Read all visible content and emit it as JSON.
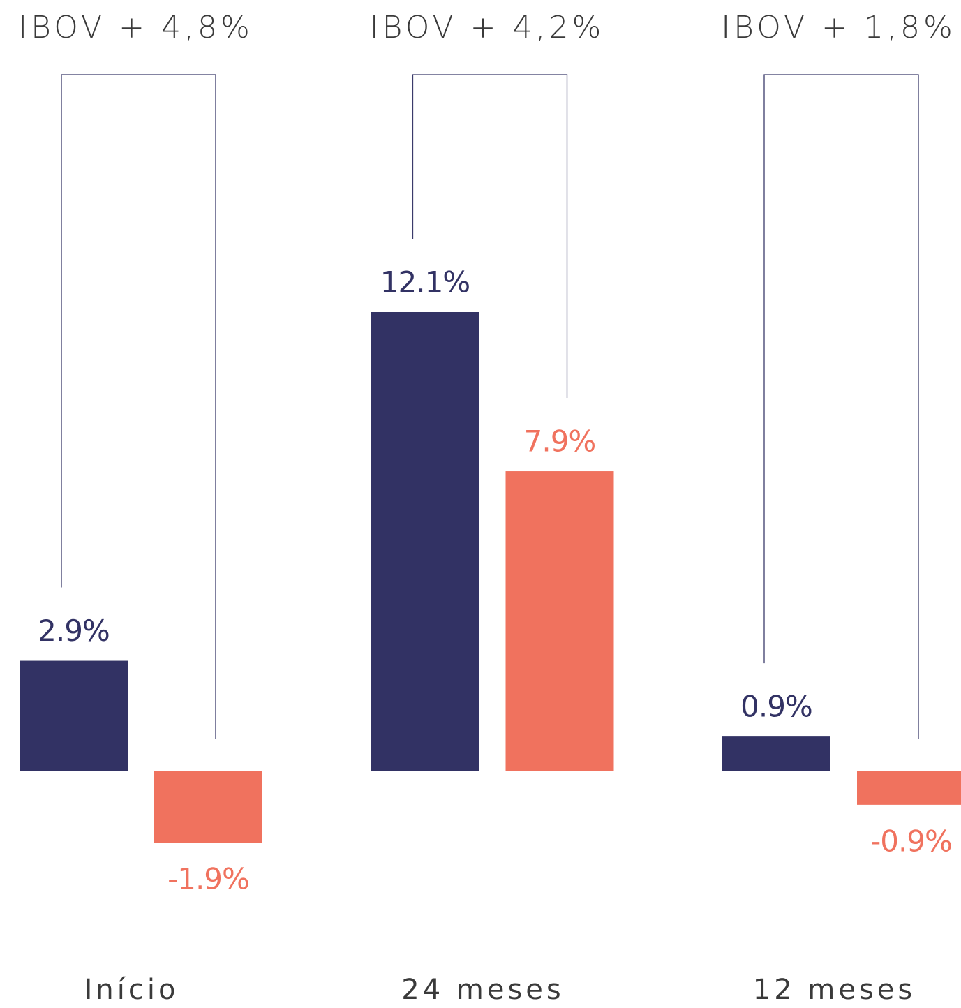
{
  "chart_data": {
    "type": "bar",
    "categories": [
      "Início",
      "24 meses",
      "12 meses"
    ],
    "annotations": [
      "IBOV + 4,8%",
      "IBOV + 4,2%",
      "IBOV + 1,8%"
    ],
    "series": [
      {
        "color": "#323264",
        "values": [
          2.9,
          12.1,
          0.9
        ],
        "value_labels": [
          "2.9%",
          "12.1%",
          "0.9%"
        ]
      },
      {
        "color": "#f0725e",
        "values": [
          -1.9,
          7.9,
          -0.9
        ],
        "value_labels": [
          "-1.9%",
          "7.9%",
          "-0.9%"
        ]
      }
    ]
  }
}
